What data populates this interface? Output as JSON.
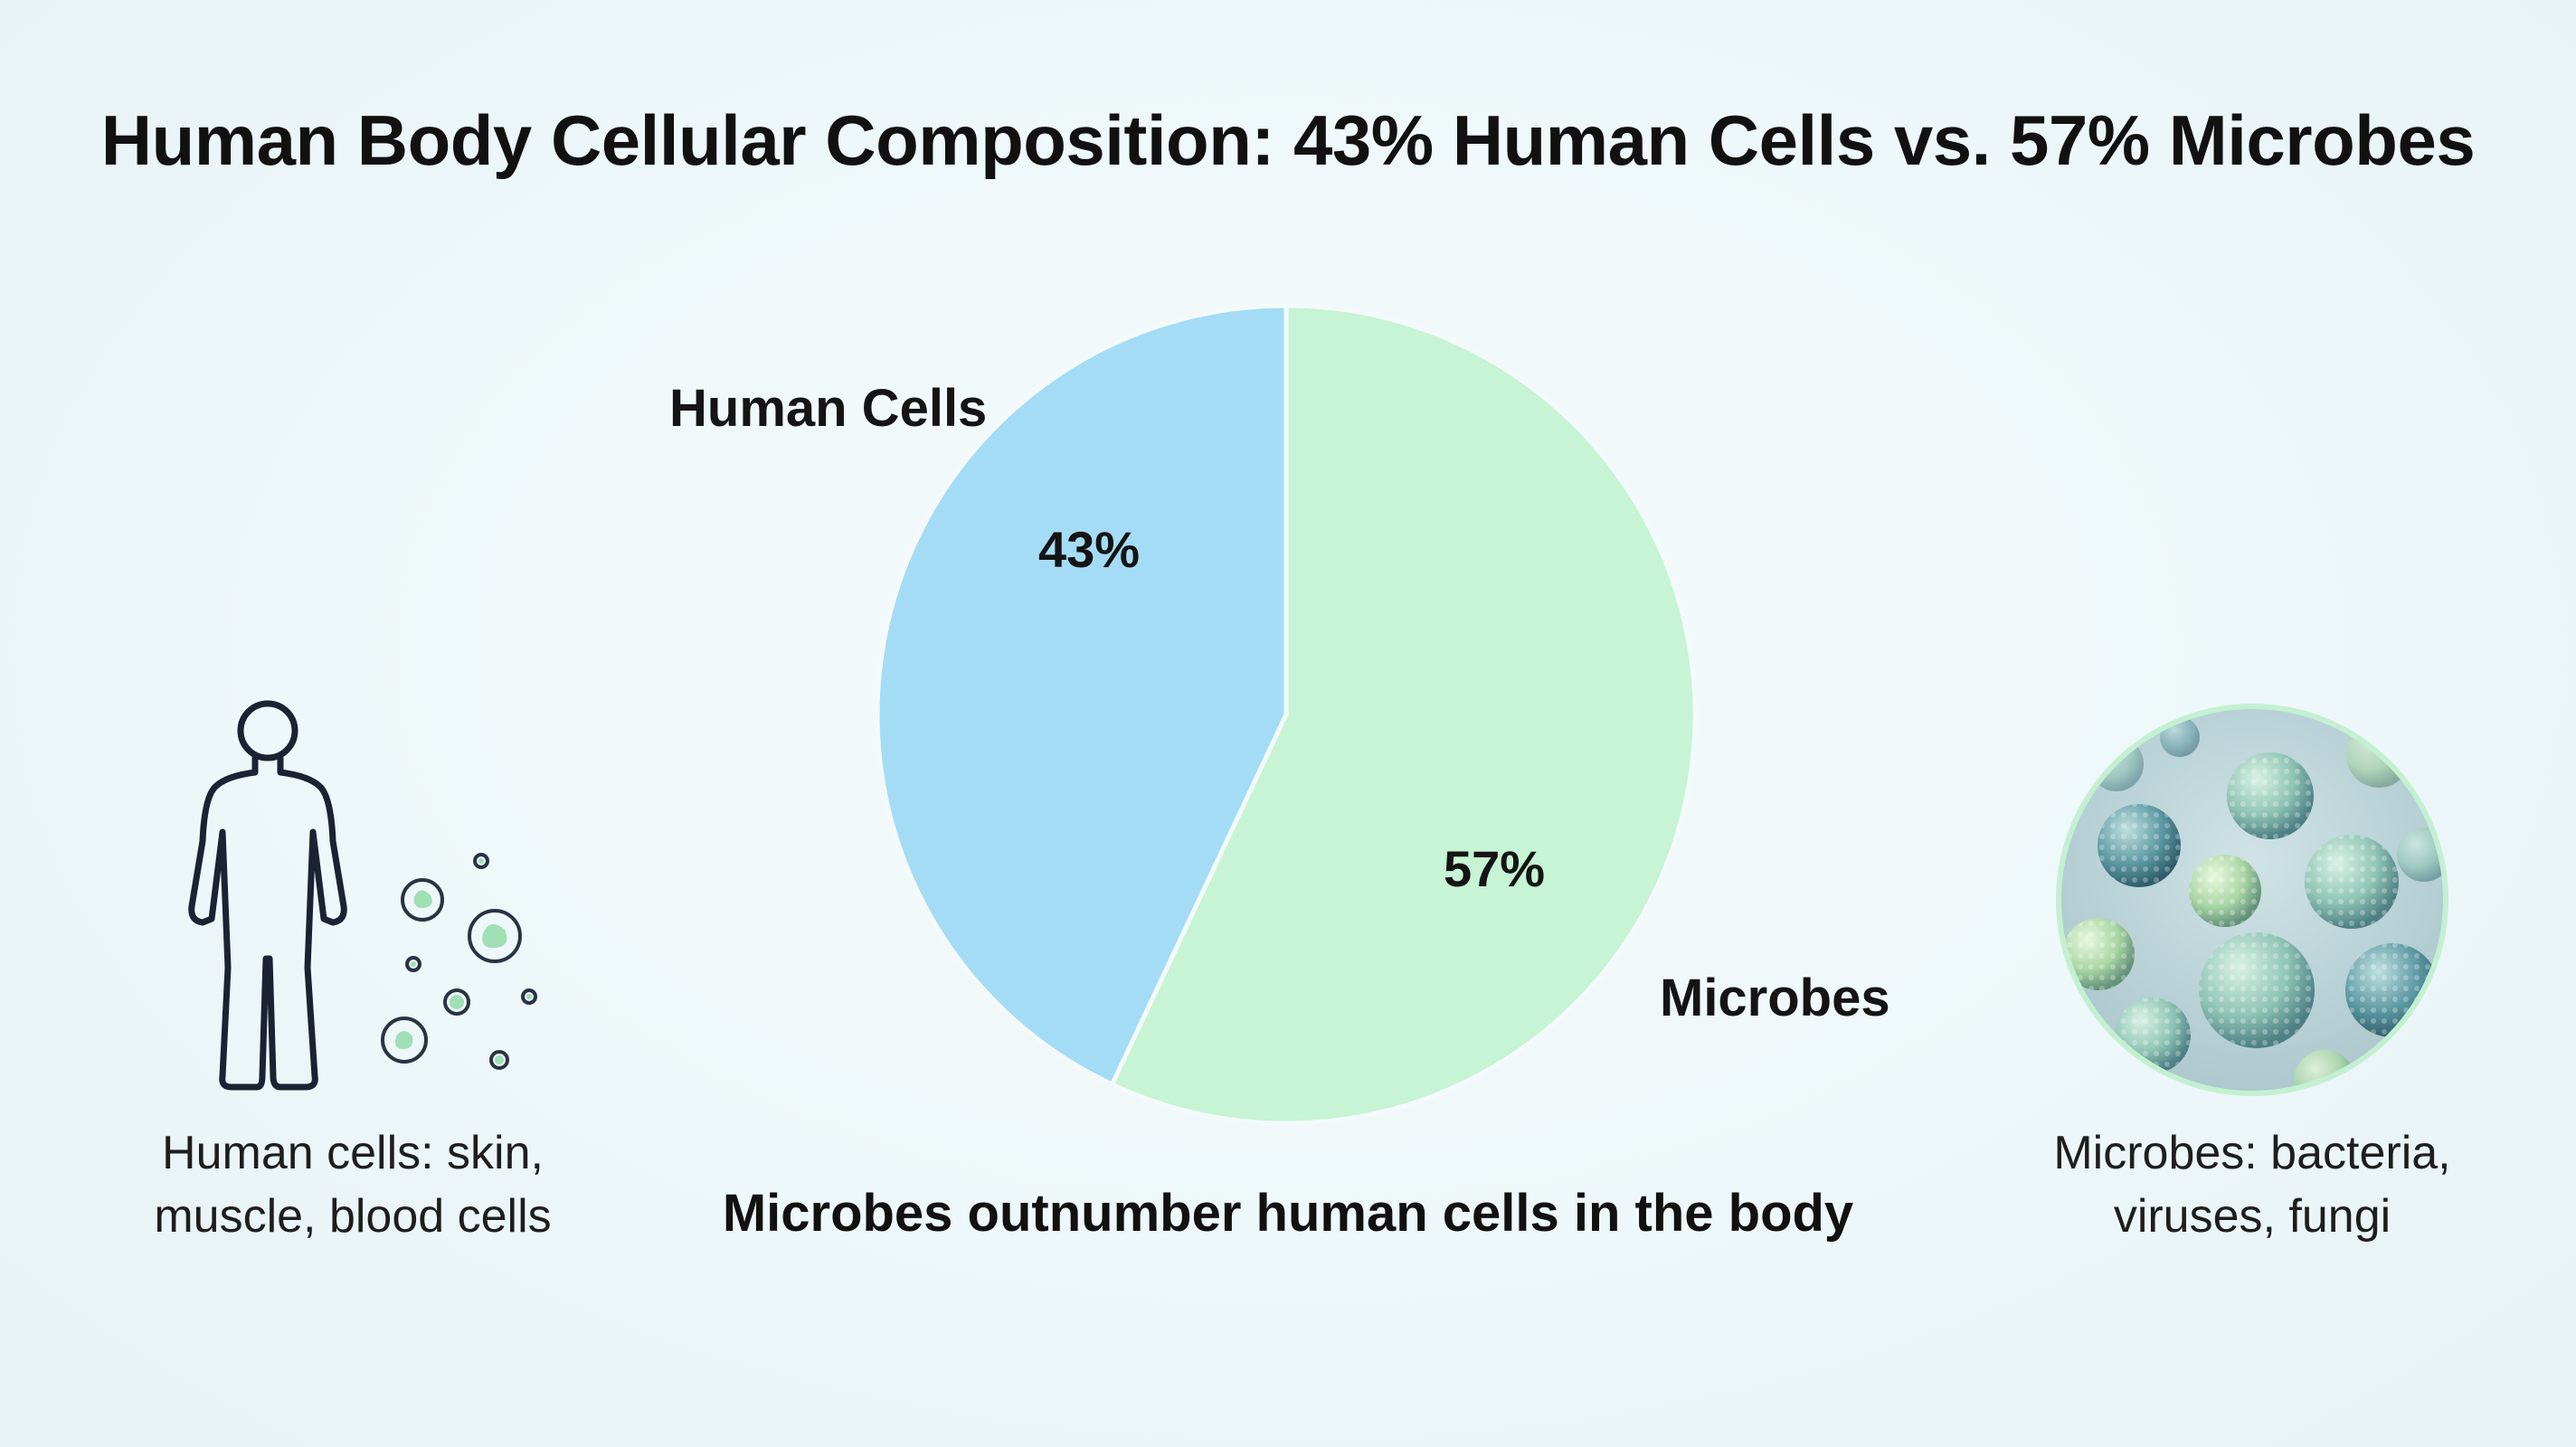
{
  "title": "Human Body Cellular Composition: 43% Human Cells vs. 57% Microbes",
  "caption": "Microbes outnumber human cells in the body",
  "left_panel": {
    "icon": "human-figure-icon",
    "description_line1": "Human cells: skin,",
    "description_line2": "muscle, blood cells"
  },
  "right_panel": {
    "icon": "microbes-image",
    "description_line1": "Microbes: bacteria,",
    "description_line2": "viruses, fungi"
  },
  "chart_data": {
    "type": "pie",
    "slices": [
      {
        "label": "Human Cells",
        "value": 43,
        "value_label": "43%",
        "color": "#a4dcf6"
      },
      {
        "label": "Microbes",
        "value": 57,
        "value_label": "57%",
        "color": "#c6f4d4"
      }
    ]
  }
}
